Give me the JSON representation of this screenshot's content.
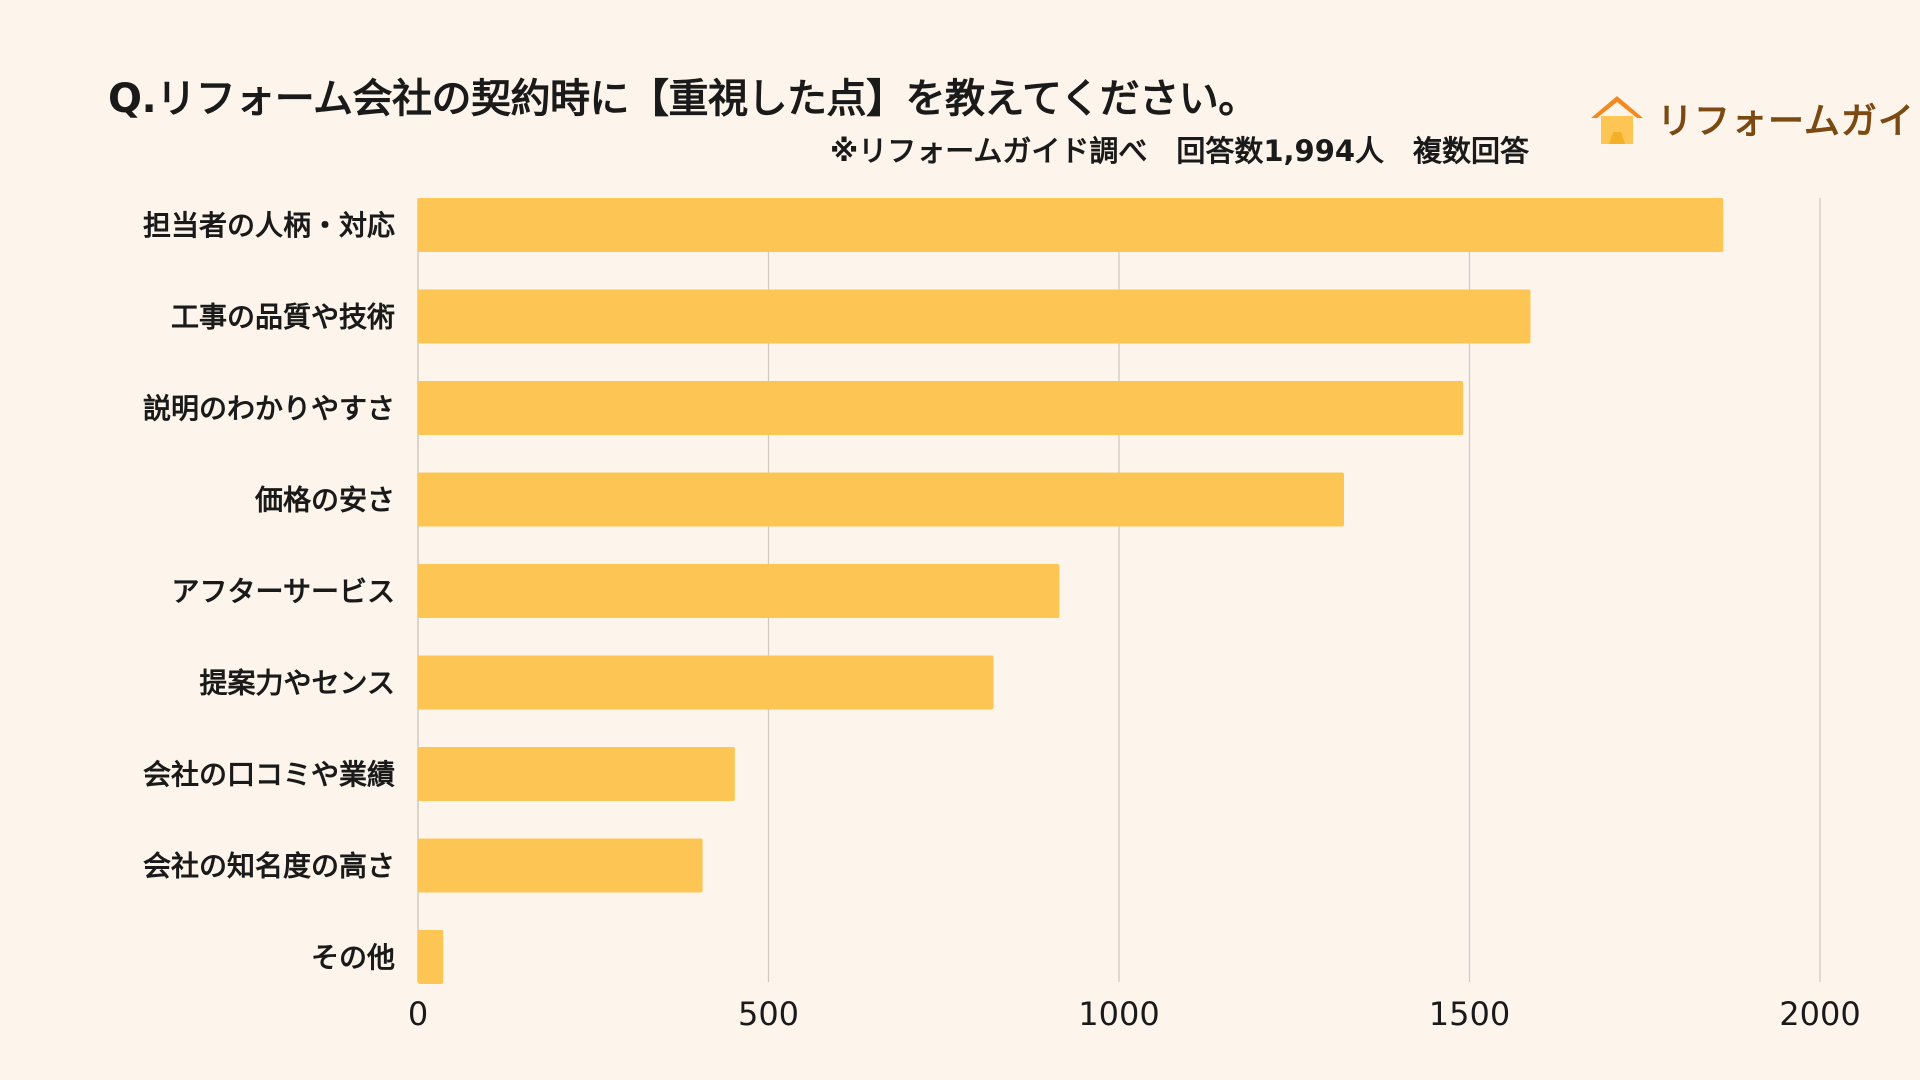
{
  "title": "Q.リフォーム会社の契約時に【重視した点】を教えてください。",
  "subtitle": "※リフォームガイド調べ　回答数1,994人　複数回答",
  "logo": {
    "text": "リフォームガイド",
    "icon": "house-icon"
  },
  "colors": {
    "bar": "#fdc654",
    "grid": "#cfc9c2",
    "background": "#fdf5ec",
    "logo_orange": "#f5891f",
    "logo_yellow": "#fdc654",
    "logo_text": "#7a4a12"
  },
  "chart_data": {
    "type": "bar",
    "orientation": "horizontal",
    "categories": [
      "担当者の人柄・対応",
      "工事の品質や技術",
      "説明のわかりやすさ",
      "価格の安さ",
      "アフターサービス",
      "提案力やセンス",
      "会社の口コミや業績",
      "会社の知名度の高さ",
      "その他"
    ],
    "values": [
      1862,
      1587,
      1491,
      1321,
      915,
      821,
      452,
      406,
      36
    ],
    "xlim": [
      0,
      2000
    ],
    "xticks": [
      0,
      500,
      1000,
      1500,
      2000
    ],
    "grid": true,
    "legend": "none"
  }
}
